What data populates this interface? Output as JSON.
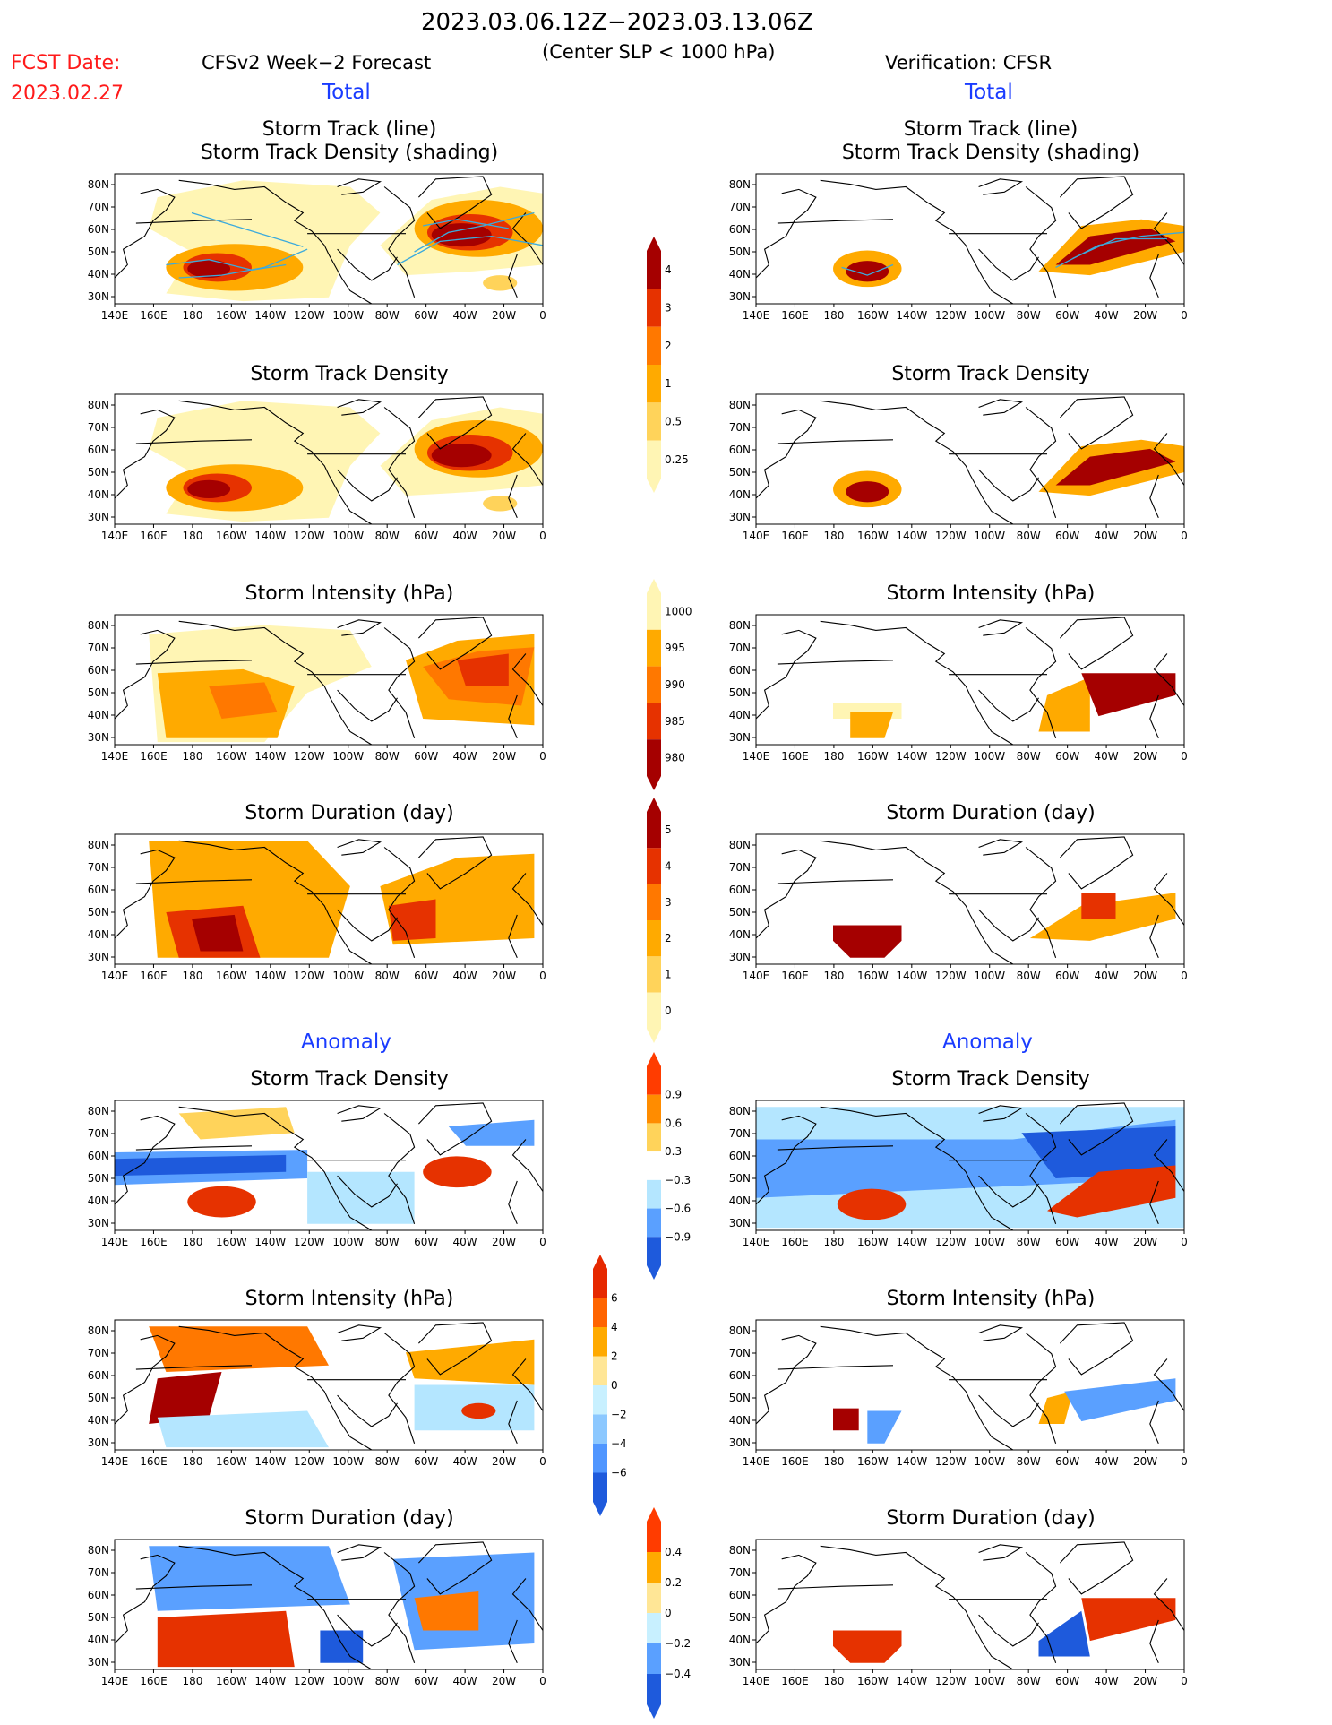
{
  "header": {
    "date_range": "2023.03.06.12Z−2023.03.13.06Z",
    "criterion": "(Center SLP < 1000 hPa)",
    "fcst_label": "FCST Date:",
    "fcst_date": "2023.02.27",
    "forecast_model": "CFSv2 Week−2 Forecast",
    "verification": "Verification: CFSR",
    "left_section_total": "Total",
    "right_section_total": "Total",
    "left_section_anomaly": "Anomaly",
    "right_section_anomaly": "Anomaly"
  },
  "panel_titles": {
    "track_line": "Storm Track (line)",
    "track_shading": "Storm Track Density (shading)",
    "density": "Storm Track Density",
    "intensity": "Storm Intensity (hPa)",
    "duration": "Storm Duration (day)"
  },
  "axes": {
    "lon_ticks": [
      "140E",
      "160E",
      "180",
      "160W",
      "140W",
      "120W",
      "100W",
      "80W",
      "60W",
      "40W",
      "20W",
      "0"
    ],
    "lat_ticks": [
      "80N",
      "70N",
      "60N",
      "50N",
      "40N",
      "30N"
    ]
  },
  "colorbars": {
    "density_total": {
      "labels": [
        "4",
        "3",
        "2",
        "1",
        "0.5",
        "0.25"
      ],
      "colors": [
        "#a50000",
        "#e63200",
        "#ff7800",
        "#ffaa00",
        "#ffd35a",
        "#fff5b4"
      ]
    },
    "intensity_total": {
      "labels": [
        "1000",
        "995",
        "990",
        "985",
        "980"
      ],
      "colors": [
        "#fff5b4",
        "#ffaa00",
        "#ff7800",
        "#e63200",
        "#a50000"
      ]
    },
    "duration_total": {
      "labels": [
        "5",
        "4",
        "3",
        "2",
        "1",
        "0"
      ],
      "colors": [
        "#a50000",
        "#e63200",
        "#ff7800",
        "#ffaa00",
        "#ffd35a",
        "#fff5b4"
      ]
    },
    "density_anom": {
      "labels": [
        "0.9",
        "0.6",
        "0.3",
        "−0.3",
        "−0.6",
        "−0.9"
      ],
      "colors": [
        "#ff3c00",
        "#ff8c00",
        "#ffd35a",
        "#ffffff",
        "#b4e6ff",
        "#5aa0ff",
        "#1e5adc"
      ]
    },
    "intensity_anom": {
      "labels": [
        "6",
        "4",
        "2",
        "0",
        "−2",
        "−4",
        "−6"
      ],
      "colors": [
        "#e62800",
        "#ff6400",
        "#ffaa00",
        "#ffe696",
        "#c8f0ff",
        "#8cc8ff",
        "#5096ff",
        "#1e5adc"
      ]
    },
    "duration_anom": {
      "labels": [
        "0.4",
        "0.2",
        "0",
        "−0.2",
        "−0.4"
      ],
      "colors": [
        "#ff3c00",
        "#ffaa00",
        "#ffe696",
        "#c8f0ff",
        "#5aa0ff",
        "#1e5adc"
      ]
    }
  },
  "colors": {
    "ocean": "#ffffff",
    "coast": "#000000",
    "track_line": "#3caadc",
    "header_red": "#ff1a1a",
    "header_blue": "#1a3cff"
  }
}
